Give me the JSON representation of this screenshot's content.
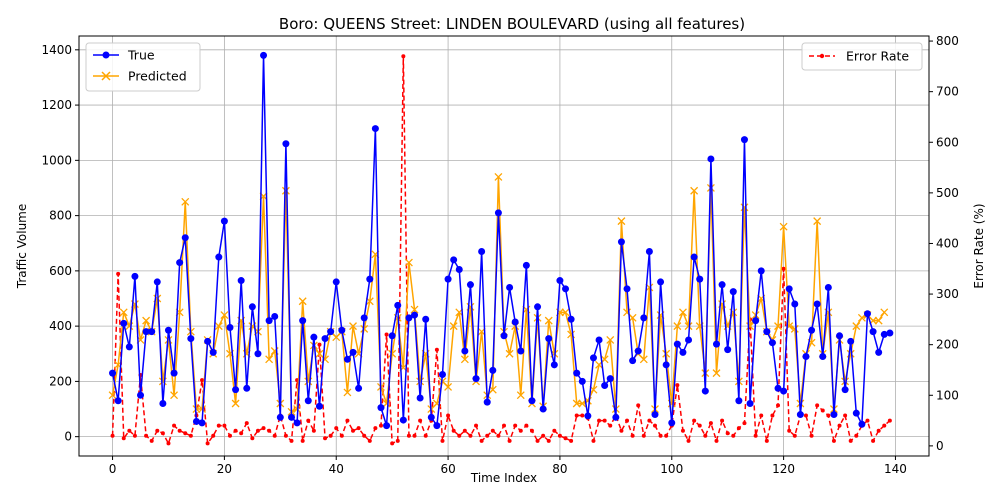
{
  "chart_data": {
    "type": "line",
    "title": "Boro: QUEENS Street: LINDEN BOULEVARD (using all features)",
    "xlabel": "Time Index",
    "ylabel": "Traffic Volume",
    "y2label": "Error Rate (%)",
    "xlim": [
      -6,
      146
    ],
    "ylim": [
      -70,
      1450
    ],
    "y2lim": [
      -20,
      810
    ],
    "x_ticks": [
      0,
      20,
      40,
      60,
      80,
      100,
      120,
      140
    ],
    "y_ticks": [
      0,
      200,
      400,
      600,
      800,
      1000,
      1200,
      1400
    ],
    "y2_ticks": [
      0,
      100,
      200,
      300,
      400,
      500,
      600,
      700,
      800
    ],
    "grid": true,
    "legend_left": "top-left",
    "legend_right": "top-right",
    "colors": {
      "true": "#0000ff",
      "predicted": "#ffa500",
      "error": "#ff0000"
    },
    "series": [
      {
        "name": "True",
        "axis": "left",
        "marker": "circle",
        "linestyle": "solid",
        "values": [
          230,
          130,
          410,
          325,
          580,
          150,
          380,
          380,
          560,
          120,
          385,
          230,
          630,
          720,
          355,
          55,
          50,
          345,
          305,
          650,
          780,
          395,
          170,
          565,
          175,
          470,
          300,
          1380,
          420,
          435,
          70,
          1060,
          70,
          50,
          420,
          130,
          360,
          110,
          355,
          380,
          560,
          385,
          280,
          305,
          175,
          430,
          570,
          1115,
          105,
          40,
          365,
          475,
          60,
          430,
          440,
          140,
          425,
          70,
          40,
          225,
          570,
          640,
          605,
          310,
          550,
          210,
          670,
          125,
          240,
          810,
          365,
          540,
          415,
          310,
          620,
          130,
          470,
          100,
          355,
          260,
          565,
          535,
          425,
          230,
          200,
          75,
          285,
          350,
          185,
          210,
          70,
          705,
          535,
          275,
          310,
          430,
          670,
          80,
          560,
          260,
          50,
          335,
          305,
          350,
          650,
          570,
          165,
          1005,
          335,
          550,
          315,
          525,
          130,
          1075,
          120,
          420,
          600,
          380,
          340,
          175,
          165,
          535,
          480,
          80,
          290,
          385,
          480,
          290,
          540,
          80,
          365,
          170,
          345,
          85,
          45,
          445,
          380,
          305,
          370,
          375
        ]
      },
      {
        "name": "Predicted",
        "axis": "left",
        "marker": "x",
        "linestyle": "solid",
        "values": [
          150,
          260,
          450,
          400,
          480,
          350,
          420,
          380,
          500,
          200,
          350,
          150,
          450,
          850,
          380,
          100,
          100,
          350,
          300,
          400,
          440,
          300,
          120,
          420,
          300,
          400,
          380,
          870,
          280,
          310,
          120,
          890,
          90,
          100,
          490,
          200,
          330,
          300,
          280,
          380,
          360,
          380,
          160,
          400,
          300,
          390,
          490,
          660,
          180,
          120,
          300,
          430,
          250,
          630,
          460,
          200,
          300,
          100,
          120,
          200,
          180,
          400,
          450,
          280,
          470,
          200,
          380,
          150,
          170,
          940,
          380,
          300,
          400,
          150,
          460,
          120,
          430,
          110,
          420,
          300,
          450,
          450,
          370,
          120,
          120,
          130,
          170,
          260,
          280,
          350,
          100,
          780,
          450,
          430,
          300,
          280,
          540,
          100,
          440,
          300,
          120,
          400,
          450,
          400,
          890,
          400,
          230,
          900,
          230,
          480,
          400,
          450,
          200,
          830,
          400,
          440,
          500,
          380,
          350,
          400,
          760,
          400,
          390,
          120,
          300,
          340,
          780,
          300,
          450,
          100,
          350,
          200,
          300,
          400,
          430,
          440,
          420,
          420,
          450
        ]
      },
      {
        "name": "Error Rate",
        "axis": "right",
        "marker": "dot",
        "linestyle": "dashed",
        "values": [
          20,
          340,
          15,
          30,
          20,
          140,
          20,
          10,
          30,
          25,
          5,
          40,
          30,
          25,
          20,
          60,
          130,
          5,
          20,
          40,
          40,
          20,
          30,
          25,
          45,
          15,
          30,
          35,
          30,
          20,
          60,
          20,
          10,
          130,
          10,
          50,
          30,
          200,
          15,
          20,
          35,
          20,
          50,
          30,
          35,
          20,
          10,
          35,
          40,
          220,
          5,
          10,
          770,
          20,
          20,
          50,
          20,
          50,
          190,
          10,
          60,
          30,
          20,
          30,
          20,
          40,
          10,
          20,
          30,
          20,
          40,
          10,
          40,
          30,
          40,
          30,
          10,
          20,
          10,
          30,
          20,
          15,
          10,
          60,
          60,
          55,
          10,
          50,
          50,
          40,
          60,
          30,
          50,
          20,
          80,
          20,
          50,
          40,
          20,
          20,
          40,
          120,
          30,
          10,
          50,
          40,
          20,
          45,
          10,
          50,
          25,
          20,
          35,
          45,
          250,
          20,
          60,
          10,
          60,
          80,
          350,
          30,
          20,
          60,
          60,
          20,
          80,
          70,
          60,
          10,
          40,
          60,
          10,
          20,
          40,
          50,
          10,
          30,
          40,
          50
        ]
      }
    ]
  }
}
